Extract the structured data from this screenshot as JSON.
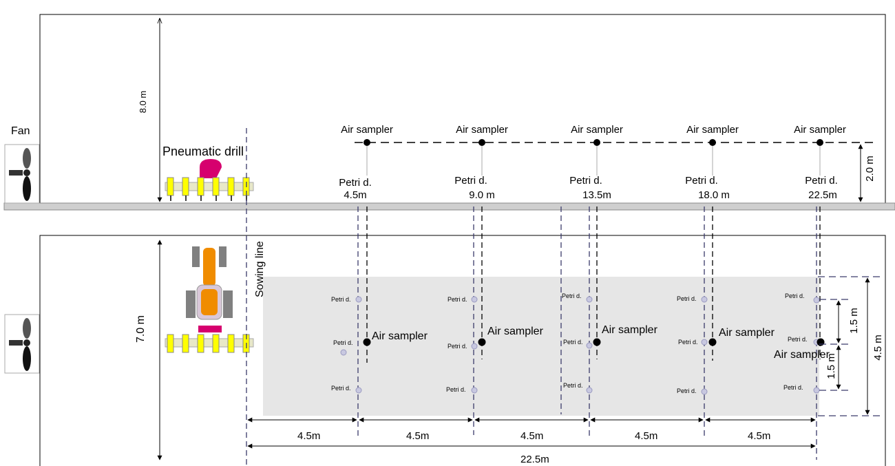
{
  "side_view": {
    "fan_label": "Fan",
    "drill_label": "Pneumatic drill",
    "height_label": "8.0 m",
    "sampler_height": "2.0 m",
    "samplers": [
      {
        "label": "Air sampler",
        "petri_line1": "Petri d.",
        "petri_line2": "4.5m"
      },
      {
        "label": "Air sampler",
        "petri_line1": "Petri d.",
        "petri_line2": "9.0 m"
      },
      {
        "label": "Air sampler",
        "petri_line1": "Petri d.",
        "petri_line2": "13.5m"
      },
      {
        "label": "Air sampler",
        "petri_line1": "Petri d.",
        "petri_line2": "18.0 m"
      },
      {
        "label": "Air sampler",
        "petri_line1": "Petri d.",
        "petri_line2": "22.5m"
      }
    ]
  },
  "plan_view": {
    "width_label": "7.0 m",
    "sowing_line_label": "Sowing line",
    "sampler_label": "Air sampler",
    "petri_label": "Petri d.",
    "spacing_labels": [
      "4.5m",
      "4.5m",
      "4.5m",
      "4.5m",
      "4.5m"
    ],
    "total_label": "22.5m",
    "right_dims": {
      "upper": "1.5 m",
      "lower": "1.5 m",
      "total": "4.5 m"
    }
  },
  "colors": {
    "ground": "#cfcfcf",
    "field": "#e6e6e6",
    "petri": "#c8c8e0",
    "sowing_dash": "#3a3a6a",
    "drill_yellow": "#ffff00",
    "drill_magenta": "#d6006e",
    "tractor_orange": "#f08c00",
    "tractor_wheels": "#808080"
  }
}
